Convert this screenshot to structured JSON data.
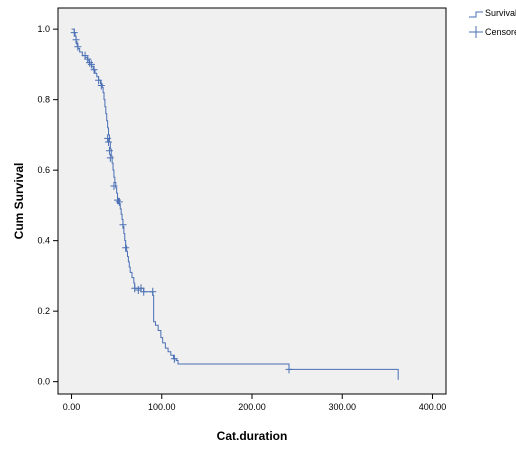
{
  "chart_data": {
    "type": "line",
    "title": "",
    "xlabel": "Cat.duration",
    "ylabel": "Cum Survival",
    "xlim": [
      -15,
      415
    ],
    "ylim": [
      -0.035,
      1.06
    ],
    "x_ticks": [
      0,
      100,
      200,
      300,
      400
    ],
    "x_tick_labels": [
      "0.00",
      "100.00",
      "200.00",
      "300.00",
      "400.00"
    ],
    "y_ticks": [
      0.0,
      0.2,
      0.4,
      0.6,
      0.8,
      1.0
    ],
    "y_tick_labels": [
      "0.0",
      "0.2",
      "0.4",
      "0.6",
      "0.8",
      "1.0"
    ],
    "grid": false,
    "legend_position": "outside-top-right",
    "plot_background": "#f0f0f0",
    "series_color": "#4a6fb5",
    "legend": [
      "Survival Function",
      "Censored"
    ],
    "series": [
      {
        "name": "Survival Function",
        "kind": "step",
        "points": [
          [
            0,
            1.0
          ],
          [
            3,
            0.99
          ],
          [
            4,
            0.98
          ],
          [
            5,
            0.965
          ],
          [
            6,
            0.955
          ],
          [
            7,
            0.945
          ],
          [
            9,
            0.935
          ],
          [
            12,
            0.925
          ],
          [
            15,
            0.92
          ],
          [
            18,
            0.91
          ],
          [
            20,
            0.9
          ],
          [
            22,
            0.895
          ],
          [
            24,
            0.885
          ],
          [
            26,
            0.875
          ],
          [
            28,
            0.865
          ],
          [
            30,
            0.855
          ],
          [
            32,
            0.845
          ],
          [
            34,
            0.835
          ],
          [
            35,
            0.82
          ],
          [
            36,
            0.8
          ],
          [
            37,
            0.78
          ],
          [
            38,
            0.76
          ],
          [
            39,
            0.74
          ],
          [
            40,
            0.72
          ],
          [
            41,
            0.7
          ],
          [
            42,
            0.68
          ],
          [
            43,
            0.66
          ],
          [
            44,
            0.64
          ],
          [
            45,
            0.62
          ],
          [
            46,
            0.6
          ],
          [
            47,
            0.58
          ],
          [
            48,
            0.565
          ],
          [
            49,
            0.55
          ],
          [
            50,
            0.535
          ],
          [
            51,
            0.52
          ],
          [
            52,
            0.505
          ],
          [
            54,
            0.49
          ],
          [
            55,
            0.475
          ],
          [
            56,
            0.46
          ],
          [
            57,
            0.44
          ],
          [
            58,
            0.42
          ],
          [
            59,
            0.4
          ],
          [
            60,
            0.385
          ],
          [
            61,
            0.37
          ],
          [
            62,
            0.355
          ],
          [
            63,
            0.34
          ],
          [
            64,
            0.325
          ],
          [
            65,
            0.31
          ],
          [
            67,
            0.295
          ],
          [
            69,
            0.28
          ],
          [
            70,
            0.265
          ],
          [
            80,
            0.255
          ],
          [
            90,
            0.245
          ],
          [
            91,
            0.17
          ],
          [
            93,
            0.16
          ],
          [
            96,
            0.145
          ],
          [
            99,
            0.125
          ],
          [
            101,
            0.11
          ],
          [
            104,
            0.095
          ],
          [
            107,
            0.085
          ],
          [
            110,
            0.075
          ],
          [
            113,
            0.065
          ],
          [
            116,
            0.06
          ],
          [
            118,
            0.05
          ],
          [
            241,
            0.035
          ],
          [
            362,
            0.035
          ],
          [
            362,
            0.005
          ]
        ]
      },
      {
        "name": "Censored",
        "kind": "markers",
        "points": [
          [
            3,
            0.99
          ],
          [
            5,
            0.97
          ],
          [
            7,
            0.95
          ],
          [
            15,
            0.925
          ],
          [
            18,
            0.915
          ],
          [
            20,
            0.905
          ],
          [
            22,
            0.9
          ],
          [
            25,
            0.885
          ],
          [
            30,
            0.855
          ],
          [
            33,
            0.84
          ],
          [
            40,
            0.69
          ],
          [
            41,
            0.68
          ],
          [
            42,
            0.655
          ],
          [
            43,
            0.635
          ],
          [
            47,
            0.555
          ],
          [
            51,
            0.515
          ],
          [
            53,
            0.51
          ],
          [
            57,
            0.445
          ],
          [
            60,
            0.38
          ],
          [
            70,
            0.265
          ],
          [
            74,
            0.26
          ],
          [
            77,
            0.265
          ],
          [
            80,
            0.255
          ],
          [
            90,
            0.255
          ],
          [
            114,
            0.065
          ],
          [
            241,
            0.035
          ]
        ]
      }
    ]
  }
}
